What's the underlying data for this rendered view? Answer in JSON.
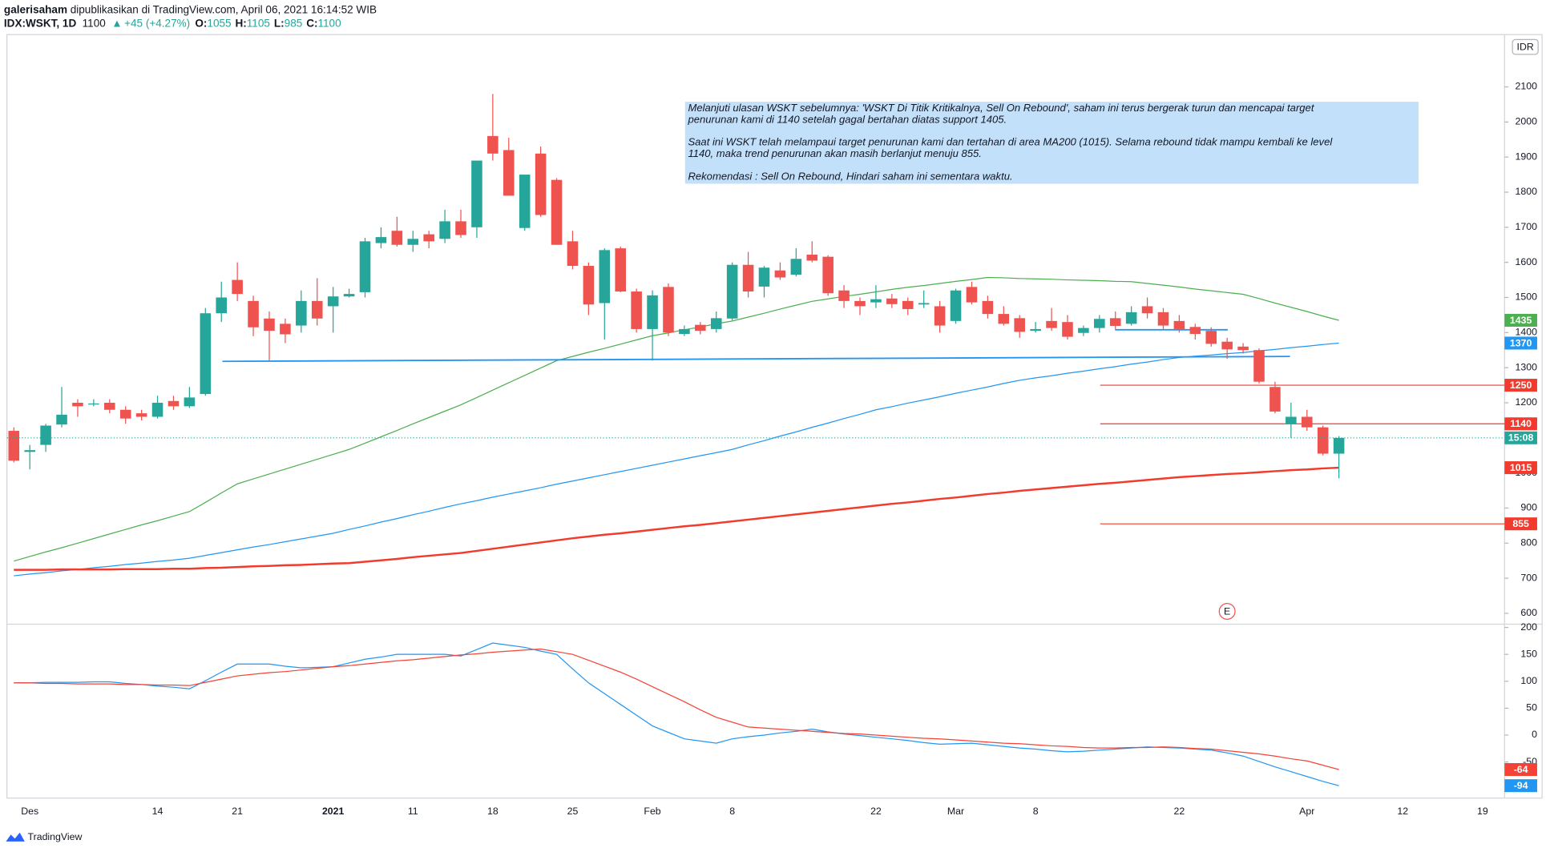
{
  "header": {
    "author": "galerisaham",
    "published": "dipublikasikan di TradingView.com, April 06, 2021 16:14:52 WIB",
    "symbol": "IDX:WSKT, 1D",
    "last": 1100,
    "change": "+45 (+4.27%)",
    "ohlc": [
      {
        "label": "O:",
        "value": 1055
      },
      {
        "label": "H:",
        "value": 1105
      },
      {
        "label": "L:",
        "value": 985
      },
      {
        "label": "C:",
        "value": 1100
      }
    ]
  },
  "footer": {
    "brand": "TradingView"
  },
  "chart_data": [
    {
      "type": "candlestick",
      "currency": "IDR",
      "up_color": "#26a69a",
      "down_color": "#ef5350",
      "categories": [
        null,
        "Des",
        null,
        null,
        null,
        null,
        null,
        null,
        null,
        "14",
        null,
        null,
        null,
        null,
        "21",
        null,
        null,
        null,
        null,
        null,
        "2021",
        null,
        null,
        null,
        null,
        "11",
        null,
        null,
        null,
        null,
        "18",
        null,
        null,
        null,
        null,
        "25",
        null,
        null,
        null,
        null,
        "Feb",
        null,
        null,
        null,
        null,
        "8",
        null,
        null,
        null,
        null,
        null,
        null,
        null,
        null,
        "22",
        null,
        null,
        null,
        null,
        "Mar",
        null,
        null,
        null,
        null,
        "8",
        null,
        null,
        null,
        null,
        null,
        null,
        null,
        null,
        "22",
        null,
        null,
        null,
        null,
        null,
        null,
        null,
        "Apr",
        null,
        null,
        null,
        null,
        null,
        "12",
        null,
        null,
        null,
        null,
        "19",
        null
      ],
      "open": [
        1120,
        1060,
        1080,
        1138,
        1200,
        1195,
        1200,
        1180,
        1170,
        1160,
        1205,
        1190,
        1225,
        1455,
        1550,
        1490,
        1440,
        1425,
        1420,
        1490,
        1475,
        1503,
        1515,
        1655,
        1690,
        1650,
        1680,
        1667,
        1717,
        1700,
        1960,
        1920,
        1698,
        1910,
        1835,
        1660,
        1590,
        1484,
        1640,
        1517,
        1410,
        1530,
        1396,
        1422,
        1410,
        1440,
        1593,
        1531,
        1577,
        1565,
        1622,
        1616,
        1520,
        1490,
        1486,
        1497,
        1490,
        1480,
        1475,
        1433,
        1530,
        1490,
        1453,
        1441,
        1405,
        1433,
        1430,
        1399,
        1413,
        1441,
        1425,
        1475,
        1458,
        1433,
        1416,
        1405,
        1374,
        1360,
        1350,
        1245,
        1140,
        1160,
        1130,
        1055,
        null,
        null,
        null,
        null,
        null,
        null,
        null,
        null,
        null,
        null
      ],
      "high": [
        1130,
        1080,
        1140,
        1245,
        1210,
        1210,
        1210,
        1190,
        1180,
        1220,
        1220,
        1245,
        1470,
        1545,
        1600,
        1505,
        1460,
        1440,
        1520,
        1555,
        1530,
        1525,
        1670,
        1700,
        1730,
        1690,
        1690,
        1750,
        1750,
        1890,
        2080,
        1955,
        1850,
        1930,
        1840,
        1690,
        1600,
        1640,
        1645,
        1525,
        1520,
        1540,
        1420,
        1430,
        1460,
        1600,
        1630,
        1590,
        1600,
        1640,
        1660,
        1620,
        1535,
        1500,
        1535,
        1510,
        1500,
        1520,
        1490,
        1525,
        1545,
        1505,
        1475,
        1450,
        1430,
        1470,
        1450,
        1420,
        1450,
        1460,
        1475,
        1500,
        1470,
        1450,
        1425,
        1415,
        1385,
        1370,
        1355,
        1260,
        1200,
        1180,
        1135,
        1105,
        null,
        null,
        null,
        null,
        null,
        null,
        null,
        null,
        null,
        null
      ],
      "low": [
        1030,
        1010,
        1060,
        1130,
        1160,
        1190,
        1170,
        1140,
        1150,
        1155,
        1180,
        1185,
        1220,
        1430,
        1490,
        1390,
        1320,
        1370,
        1400,
        1420,
        1400,
        1500,
        1500,
        1640,
        1645,
        1630,
        1640,
        1655,
        1670,
        1670,
        1890,
        1790,
        1690,
        1730,
        1650,
        1580,
        1450,
        1380,
        1515,
        1400,
        1320,
        1390,
        1390,
        1395,
        1400,
        1435,
        1500,
        1500,
        1550,
        1560,
        1600,
        1505,
        1470,
        1450,
        1470,
        1470,
        1450,
        1470,
        1400,
        1425,
        1480,
        1440,
        1420,
        1385,
        1400,
        1405,
        1380,
        1390,
        1400,
        1410,
        1420,
        1440,
        1410,
        1400,
        1380,
        1360,
        1325,
        1340,
        1255,
        1170,
        1100,
        1120,
        1050,
        985,
        null,
        null,
        null,
        null,
        null,
        null,
        null,
        null,
        null,
        null
      ],
      "close": [
        1035,
        1065,
        1135,
        1166,
        1190,
        1198,
        1180,
        1155,
        1160,
        1200,
        1190,
        1215,
        1455,
        1500,
        1510,
        1415,
        1405,
        1395,
        1490,
        1440,
        1503,
        1510,
        1660,
        1672,
        1650,
        1667,
        1660,
        1717,
        1678,
        1890,
        1910,
        1790,
        1850,
        1735,
        1650,
        1590,
        1480,
        1635,
        1517,
        1410,
        1506,
        1400,
        1410,
        1405,
        1441,
        1593,
        1517,
        1585,
        1557,
        1610,
        1605,
        1512,
        1490,
        1475,
        1495,
        1481,
        1467,
        1484,
        1420,
        1520,
        1486,
        1453,
        1425,
        1402,
        1410,
        1413,
        1388,
        1413,
        1439,
        1419,
        1458,
        1455,
        1420,
        1410,
        1396,
        1368,
        1352,
        1350,
        1260,
        1175,
        1160,
        1130,
        1055,
        1100,
        null,
        null,
        null,
        null,
        null,
        null,
        null,
        null,
        null,
        null
      ],
      "series": [
        {
          "color": "#4caf50",
          "width": 1,
          "values": [
            749,
            762,
            775,
            787,
            800,
            813,
            826,
            839,
            852,
            864,
            877,
            890,
            916,
            943,
            969,
            983,
            997,
            1011,
            1025,
            1039,
            1053,
            1067,
            1085,
            1103,
            1121,
            1140,
            1158,
            1176,
            1194,
            1215,
            1236,
            1257,
            1278,
            1299,
            1320,
            1332,
            1344,
            1355,
            1367,
            1379,
            1391,
            1399,
            1408,
            1416,
            1425,
            1433,
            1444,
            1455,
            1467,
            1478,
            1489,
            1496,
            1503,
            1509,
            1516,
            1523,
            1529,
            1534,
            1540,
            1546,
            1551,
            1557,
            1556,
            1554,
            1553,
            1552,
            1550,
            1549,
            1548,
            1546,
            1545,
            1540,
            1535,
            1530,
            1524,
            1519,
            1514,
            1509,
            1497,
            1484,
            1472,
            1460,
            1447,
            1435,
            null,
            null,
            null,
            null,
            null,
            null,
            null,
            null,
            null,
            null
          ]
        },
        {
          "color": "#2196f3",
          "width": 1,
          "values": [
            707,
            712,
            716,
            721,
            725,
            730,
            734,
            739,
            743,
            748,
            752,
            757,
            765,
            773,
            781,
            789,
            796,
            804,
            812,
            820,
            828,
            839,
            849,
            860,
            870,
            881,
            891,
            902,
            912,
            921,
            931,
            940,
            949,
            958,
            968,
            977,
            986,
            995,
            1004,
            1013,
            1022,
            1031,
            1040,
            1049,
            1058,
            1067,
            1080,
            1092,
            1105,
            1117,
            1130,
            1142,
            1155,
            1167,
            1180,
            1189,
            1199,
            1208,
            1217,
            1227,
            1236,
            1245,
            1255,
            1264,
            1271,
            1277,
            1284,
            1290,
            1297,
            1303,
            1310,
            1316,
            1323,
            1329,
            1333,
            1336,
            1340,
            1343,
            1348,
            1352,
            1357,
            1361,
            1366,
            1370,
            null,
            null,
            null,
            null,
            null,
            null,
            null,
            null,
            null,
            null
          ]
        },
        {
          "color": "#f23b2c",
          "width": 2,
          "values": [
            724,
            724,
            724,
            725,
            725,
            725,
            725,
            726,
            726,
            726,
            727,
            727,
            729,
            730,
            732,
            734,
            735,
            737,
            738,
            740,
            742,
            743,
            747,
            751,
            755,
            760,
            764,
            768,
            772,
            778,
            784,
            790,
            796,
            802,
            808,
            814,
            819,
            824,
            828,
            833,
            838,
            843,
            848,
            852,
            857,
            862,
            867,
            872,
            877,
            882,
            887,
            892,
            897,
            902,
            907,
            912,
            916,
            921,
            926,
            930,
            935,
            940,
            944,
            949,
            953,
            957,
            961,
            965,
            969,
            972,
            976,
            980,
            984,
            988,
            991,
            994,
            997,
            999,
            1002,
            1005,
            1008,
            1010,
            1013,
            1015,
            null,
            null,
            null,
            null,
            null,
            null,
            null,
            null,
            null,
            null
          ]
        }
      ],
      "ylim": [
        569,
        2249
      ],
      "yticks": [
        600,
        700,
        800,
        900,
        1000,
        1100,
        1200,
        1300,
        1400,
        1500,
        1600,
        1700,
        1800,
        1900,
        2000,
        2100
      ],
      "countdown": "15:08",
      "horizontal_lines": {
        "color": "#f23b2c",
        "values": [
          1250,
          1140,
          855
        ]
      },
      "trendlines": [
        {
          "color": "#2196f3",
          "values": [
            1318,
            1332
          ]
        },
        {
          "color": "#2196f3",
          "values": [
            1408,
            1408
          ]
        }
      ],
      "event_marker": "E",
      "annotation": {
        "paragraphs": [
          [
            "Melanjuti ulasan WSKT sebelumnya: 'WSKT Di Titik Kritikalnya, Sell On Rebound', saham ini terus bergerak turun dan mencapai target",
            "penurunan kami di 1140 setelah gagal bertahan diatas support 1405."
          ],
          [
            "Saat ini WSKT telah melampaui target penurunan kami dan tertahan di area MA200 (1015). Selama rebound tidak mampu kembali ke level",
            "1140, maka trend penurunan akan masih berlanjut menuju 855."
          ],
          [
            "Rekomendasi : Sell On Rebound, Hindari saham ini sementara waktu."
          ]
        ]
      }
    },
    {
      "type": "line",
      "series": [
        {
          "color": "#2196f3",
          "values": [
            97,
            97,
            98,
            98,
            98,
            99,
            99,
            96,
            94,
            91,
            89,
            86,
            101,
            117,
            132,
            132,
            132,
            128,
            125,
            126,
            127,
            134,
            141,
            145,
            150,
            150,
            150,
            150,
            147,
            159,
            171,
            167,
            163,
            156,
            150,
            123,
            97,
            77,
            57,
            37,
            17,
            5,
            -7,
            -11,
            -15,
            -7,
            -3,
            0,
            4,
            7,
            11,
            6,
            2,
            -1,
            -4,
            -7,
            -10,
            -14,
            -17,
            -16,
            -15,
            -18,
            -21,
            -24,
            -26,
            -29,
            -31,
            -30,
            -28,
            -26,
            -24,
            -22,
            -23,
            -24,
            -26,
            -28,
            -33,
            -39,
            -49,
            -59,
            -68,
            -77,
            -86,
            -94
          ]
        },
        {
          "color": "#f44336",
          "values": [
            97,
            97,
            96,
            96,
            95,
            95,
            95,
            94,
            94,
            93,
            93,
            92,
            98,
            104,
            110,
            113,
            116,
            118,
            121,
            124,
            127,
            129,
            132,
            135,
            138,
            140,
            143,
            146,
            149,
            151,
            154,
            156,
            158,
            160,
            155,
            150,
            139,
            128,
            117,
            104,
            90,
            76,
            62,
            47,
            33,
            24,
            15,
            13,
            11,
            9,
            7,
            5,
            3,
            2,
            0,
            -2,
            -4,
            -6,
            -7,
            -9,
            -11,
            -13,
            -15,
            -16,
            -18,
            -20,
            -21,
            -23,
            -24,
            -24,
            -23,
            -23,
            -22,
            -23,
            -25,
            -26,
            -29,
            -32,
            -35,
            -39,
            -44,
            -48,
            -56,
            -64
          ]
        }
      ],
      "ylim": [
        -117,
        206
      ],
      "yticks": [
        200,
        150,
        100,
        50,
        0,
        -50
      ]
    }
  ]
}
